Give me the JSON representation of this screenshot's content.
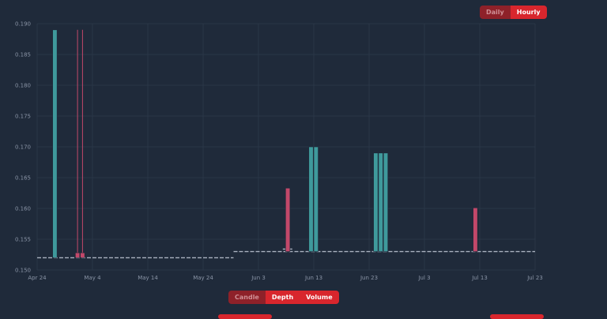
{
  "period_toggle": {
    "daily_label": "Daily",
    "hourly_label": "Hourly",
    "active": "Hourly"
  },
  "view_toggle": {
    "candle_label": "Candle",
    "depth_label": "Depth",
    "volume_label": "Volume",
    "inactive": "Candle"
  },
  "colors": {
    "up": "#3f9a9c",
    "down": "#c2486a",
    "accent": "#d8262d",
    "background": "#1f2a3a",
    "grid": "#2a3647"
  },
  "chart_data": {
    "type": "bar",
    "grid": true,
    "y_ticks": [
      "0.150",
      "0.155",
      "0.160",
      "0.165",
      "0.170",
      "0.175",
      "0.180",
      "0.185",
      "0.190"
    ],
    "ylim": [
      0.15,
      0.19
    ],
    "x_ticks": [
      {
        "label": "Apr 24",
        "day": 0
      },
      {
        "label": "May 4",
        "day": 10
      },
      {
        "label": "May 14",
        "day": 20
      },
      {
        "label": "May 24",
        "day": 30
      },
      {
        "label": "Jun 3",
        "day": 40
      },
      {
        "label": "Jun 13",
        "day": 50
      },
      {
        "label": "Jun 23",
        "day": 60
      },
      {
        "label": "Jul 3",
        "day": 70
      },
      {
        "label": "Jul 13",
        "day": 80
      },
      {
        "label": "Jul 23",
        "day": 90
      }
    ],
    "baseline_segments": [
      {
        "from_day": 0,
        "to_day": 35.5,
        "value": 0.152
      },
      {
        "from_day": 35.5,
        "to_day": 90,
        "value": 0.153
      }
    ],
    "bars": [
      {
        "day": 3.2,
        "low": 0.152,
        "high": 0.189,
        "color": "up"
      },
      {
        "day": 7.3,
        "low": 0.152,
        "high": 0.1528,
        "wick_high": 0.189,
        "color": "down"
      },
      {
        "day": 8.2,
        "low": 0.152,
        "high": 0.1528,
        "wick_high": 0.189,
        "color": "down"
      },
      {
        "day": 45.3,
        "low": 0.153,
        "high": 0.1633,
        "color": "down"
      },
      {
        "day": 49.5,
        "low": 0.153,
        "high": 0.17,
        "color": "up"
      },
      {
        "day": 50.4,
        "low": 0.153,
        "high": 0.17,
        "color": "up"
      },
      {
        "day": 61.2,
        "low": 0.153,
        "high": 0.169,
        "color": "up"
      },
      {
        "day": 62.1,
        "low": 0.153,
        "high": 0.169,
        "color": "up"
      },
      {
        "day": 63.0,
        "low": 0.153,
        "high": 0.169,
        "color": "up"
      },
      {
        "day": 79.2,
        "low": 0.153,
        "high": 0.1601,
        "color": "down"
      }
    ]
  }
}
